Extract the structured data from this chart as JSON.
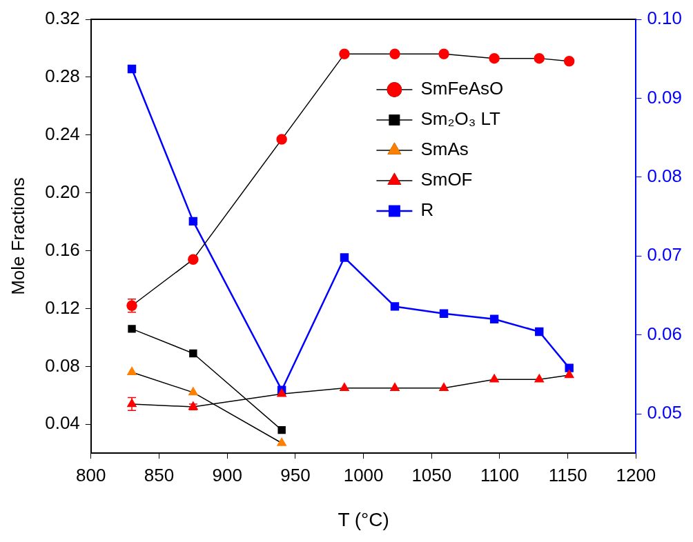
{
  "chart_data": {
    "type": "line",
    "xlabel": "T (°C)",
    "ylabel": "Mole Fractions",
    "x": [
      830,
      875,
      940,
      986,
      1023,
      1059,
      1096,
      1129,
      1151
    ],
    "xlim": [
      800,
      1200
    ],
    "xticks": [
      800,
      850,
      900,
      950,
      1000,
      1050,
      1100,
      1150,
      1200
    ],
    "ylim": [
      0.02,
      0.32
    ],
    "yticks": [
      0.04,
      0.08,
      0.12,
      0.16,
      {
        "value": 0.2,
        "label": "0.20"
      },
      0.24,
      0.28,
      0.32
    ],
    "y2lim": [
      0.045,
      0.1
    ],
    "y2ticks": [
      0.05,
      0.06,
      0.07,
      0.08,
      0.09,
      {
        "value": 0.1,
        "label": "0.10"
      }
    ],
    "grid": false,
    "legend": "top right",
    "line_style": "solid",
    "series": [
      {
        "name": "SmFeAsO",
        "color": "#ff0000",
        "marker": "circle",
        "values": [
          0.122,
          0.154,
          0.237,
          0.296,
          0.296,
          0.296,
          0.293,
          0.293,
          0.291
        ],
        "errors": [
          0.0045,
          0.002,
          null,
          null,
          null,
          null,
          null,
          null,
          null
        ]
      },
      {
        "name": "Sm₂O₃ LT",
        "color": "#000000",
        "marker": "square",
        "values": [
          0.106,
          0.089,
          0.036,
          null,
          null,
          null,
          null,
          null,
          null
        ]
      },
      {
        "name": "SmAs",
        "color": "#ff8000",
        "marker": "triangle",
        "values": [
          0.076,
          0.062,
          0.027,
          null,
          null,
          null,
          null,
          null,
          null
        ]
      },
      {
        "name": "SmOF",
        "color": "#ff0000",
        "marker": "triangle",
        "values": [
          0.054,
          0.052,
          0.061,
          0.065,
          0.065,
          0.065,
          0.071,
          0.071,
          0.074
        ],
        "errors": [
          0.0045,
          0.002,
          null,
          null,
          null,
          null,
          null,
          null,
          null
        ]
      },
      {
        "name": "R",
        "color": "#0000ff",
        "marker": "square",
        "axis": "y2",
        "values": [
          0.0937,
          0.0744,
          0.053,
          0.0698,
          0.0636,
          0.0627,
          0.062,
          0.0604,
          0.0558
        ]
      }
    ]
  }
}
